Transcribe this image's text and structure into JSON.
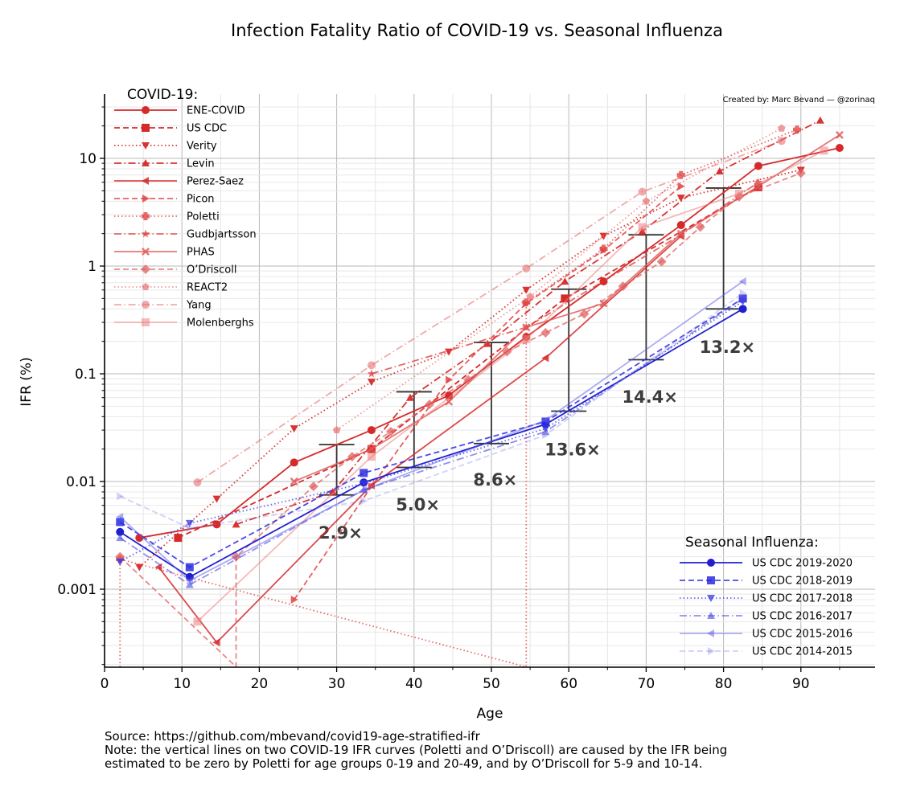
{
  "chart_data": {
    "type": "line",
    "title": "Infection Fatality Ratio of COVID-19 vs. Seasonal Influenza",
    "xlabel": "Age",
    "ylabel": "IFR (%)",
    "xlim": [
      0,
      100
    ],
    "ylim": [
      0.00019,
      40
    ],
    "yscale": "log",
    "grid": true,
    "x_ticks": [
      0,
      10,
      20,
      30,
      40,
      50,
      60,
      70,
      80,
      90
    ],
    "y_ticks": [
      {
        "value": 0.001,
        "label": "0.001"
      },
      {
        "value": 0.01,
        "label": "0.01"
      },
      {
        "value": 0.1,
        "label": "0.1"
      },
      {
        "value": 1,
        "label": "1"
      },
      {
        "value": 10,
        "label": "10"
      }
    ],
    "credit": "Created by: Marc Bevand — @zorinaq",
    "legend_covid": {
      "title": "COVID-19:",
      "placement": "top-left"
    },
    "legend_flu": {
      "title": "Seasonal Influenza:",
      "placement": "bottom-right"
    },
    "series": [
      {
        "name": "ENE-COVID",
        "group": "covid",
        "color": "#d62a2a",
        "opacity": 1.0,
        "dash": "solid",
        "marker": "circle",
        "x": [
          4.5,
          14.5,
          24.5,
          34.5,
          44.5,
          54.5,
          64.5,
          74.5,
          84.5,
          95
        ],
        "y": [
          0.003,
          0.004,
          0.015,
          0.03,
          0.063,
          0.22,
          0.72,
          2.4,
          8.5,
          12.5
        ]
      },
      {
        "name": "US CDC",
        "group": "covid",
        "color": "#d62a2a",
        "opacity": 1.0,
        "dash": "dashed",
        "marker": "square",
        "x": [
          9.5,
          34.5,
          59.5,
          84.5
        ],
        "y": [
          0.003,
          0.02,
          0.5,
          5.4
        ]
      },
      {
        "name": "Verity",
        "group": "covid",
        "color": "#d62a2a",
        "opacity": 0.95,
        "dash": "dotted",
        "marker": "triangle-down",
        "x": [
          4.5,
          14.5,
          24.5,
          34.5,
          44.5,
          54.5,
          64.5,
          74.5,
          90
        ],
        "y": [
          0.0016,
          0.0069,
          0.031,
          0.084,
          0.16,
          0.6,
          1.9,
          4.3,
          7.8
        ]
      },
      {
        "name": "Levin",
        "group": "covid",
        "color": "#d62a2a",
        "opacity": 0.95,
        "dash": "dashdot",
        "marker": "triangle-up",
        "x": [
          17,
          29.5,
          39.5,
          49.5,
          59.5,
          69.5,
          79.5,
          92.5
        ],
        "y": [
          0.004,
          0.008,
          0.06,
          0.19,
          0.72,
          2.1,
          7.6,
          22.5
        ]
      },
      {
        "name": "Perez-Saez",
        "group": "covid",
        "color": "#d62a2a",
        "opacity": 0.85,
        "dash": "solid",
        "marker": "triangle-left",
        "x": [
          7,
          14.5,
          34.5,
          57,
          74.5
        ],
        "y": [
          0.0016,
          0.00032,
          0.0092,
          0.14,
          1.9
        ]
      },
      {
        "name": "Picon",
        "group": "covid",
        "color": "#e04545",
        "opacity": 0.85,
        "dash": "dashed",
        "marker": "triangle-right",
        "x": [
          24.5,
          34.5,
          44.5,
          54.5,
          64.5,
          74.5
        ],
        "y": [
          0.0008,
          0.009,
          0.088,
          0.45,
          1.4,
          5.5
        ]
      },
      {
        "name": "Poletti",
        "group": "covid",
        "color": "#e04545",
        "opacity": 0.8,
        "dash": "dotted",
        "marker": "plus-filled",
        "x": [
          2,
          2,
          54.5,
          54.5,
          64.5,
          74.5,
          89.5
        ],
        "y": [
          0.00019,
          0.0019,
          0.00019,
          0.46,
          1.45,
          7.0,
          18.5
        ]
      },
      {
        "name": "Gudbjartsson",
        "group": "covid",
        "color": "#e04545",
        "opacity": 0.8,
        "dash": "dashdot",
        "marker": "star",
        "x": [
          34.5,
          54.5,
          74.5,
          84.5
        ],
        "y": [
          0.1,
          0.27,
          1.95,
          6.0
        ]
      },
      {
        "name": "PHAS",
        "group": "covid",
        "color": "#e05555",
        "opacity": 0.8,
        "dash": "solid",
        "marker": "x-filled",
        "x": [
          24.5,
          34.5,
          44.5,
          54.5,
          64.5,
          74.5,
          84.5,
          95
        ],
        "y": [
          0.01,
          0.02,
          0.055,
          0.27,
          0.45,
          2.0,
          5.5,
          16.5
        ]
      },
      {
        "name": "O’Driscoll",
        "group": "covid",
        "color": "#e06060",
        "opacity": 0.75,
        "dash": "dashed",
        "marker": "diamond",
        "x": [
          2,
          17,
          17,
          27,
          32,
          37,
          42,
          47,
          52,
          57,
          62,
          67,
          72,
          77,
          82,
          90
        ],
        "y": [
          0.002,
          0.00019,
          0.002,
          0.009,
          0.017,
          0.029,
          0.052,
          0.088,
          0.16,
          0.24,
          0.36,
          0.65,
          1.1,
          2.3,
          4.4,
          7.3
        ]
      },
      {
        "name": "REACT2",
        "group": "covid",
        "color": "#e87070",
        "opacity": 0.7,
        "dash": "dotted",
        "marker": "pentagon",
        "x": [
          30,
          55,
          70,
          87.5
        ],
        "y": [
          0.03,
          0.52,
          4.0,
          19.0
        ]
      },
      {
        "name": "Yang",
        "group": "covid",
        "color": "#e87070",
        "opacity": 0.6,
        "dash": "dashdot",
        "marker": "circle",
        "x": [
          12,
          34.5,
          54.5,
          69.5,
          87.5
        ],
        "y": [
          0.0098,
          0.12,
          0.95,
          4.9,
          14.5
        ]
      },
      {
        "name": "Molenberghs",
        "group": "covid",
        "color": "#ec8080",
        "opacity": 0.55,
        "dash": "solid",
        "marker": "square",
        "x": [
          12,
          34.5,
          54.5,
          69.5,
          82,
          93
        ],
        "y": [
          0.0005,
          0.017,
          0.21,
          2.3,
          4.7,
          11.8
        ]
      },
      {
        "name": "US CDC 2019-2020",
        "group": "flu",
        "color": "#1f1fd0",
        "opacity": 1.0,
        "dash": "solid",
        "marker": "circle",
        "x": [
          2,
          11,
          33.5,
          57,
          82.5
        ],
        "y": [
          0.0034,
          0.0013,
          0.0098,
          0.034,
          0.4
        ]
      },
      {
        "name": "US CDC 2018-2019",
        "group": "flu",
        "color": "#2a2ae0",
        "opacity": 0.85,
        "dash": "dashed",
        "marker": "square",
        "x": [
          2,
          11,
          33.5,
          57,
          82.5
        ],
        "y": [
          0.0042,
          0.0016,
          0.012,
          0.036,
          0.5
        ]
      },
      {
        "name": "US CDC 2017-2018",
        "group": "flu",
        "color": "#3535e0",
        "opacity": 0.75,
        "dash": "dotted",
        "marker": "triangle-down",
        "x": [
          2,
          11,
          33.5,
          57,
          82.5
        ],
        "y": [
          0.0018,
          0.0041,
          0.0096,
          0.031,
          0.47
        ]
      },
      {
        "name": "US CDC 2016-2017",
        "group": "flu",
        "color": "#4848e0",
        "opacity": 0.6,
        "dash": "dashdot",
        "marker": "triangle-up",
        "x": [
          2,
          11,
          33.5,
          57,
          82.5
        ],
        "y": [
          0.003,
          0.0011,
          0.0084,
          0.029,
          0.5
        ]
      },
      {
        "name": "US CDC 2015-2016",
        "group": "flu",
        "color": "#5a5ae8",
        "opacity": 0.5,
        "dash": "solid",
        "marker": "triangle-left",
        "x": [
          2,
          11,
          33.5,
          57,
          82.5
        ],
        "y": [
          0.0047,
          0.0012,
          0.0083,
          0.037,
          0.72
        ]
      },
      {
        "name": "US CDC 2014-2015",
        "group": "flu",
        "color": "#7a7ae8",
        "opacity": 0.35,
        "dash": "dashed",
        "marker": "triangle-right",
        "x": [
          2,
          11,
          33.5,
          57,
          82.5
        ],
        "y": [
          0.0073,
          0.0037,
          0.0066,
          0.027,
          0.56
        ]
      }
    ],
    "ratio_bars": [
      {
        "x": 30,
        "low": 0.0075,
        "high": 0.022,
        "label": "2.9×",
        "label_x": 30.5,
        "label_y": 0.0034
      },
      {
        "x": 40,
        "low": 0.0135,
        "high": 0.068,
        "label": "5.0×",
        "label_x": 40.5,
        "label_y": 0.0062
      },
      {
        "x": 50,
        "low": 0.0225,
        "high": 0.195,
        "label": "8.6×",
        "label_x": 50.5,
        "label_y": 0.0105
      },
      {
        "x": 60,
        "low": 0.045,
        "high": 0.61,
        "label": "13.6×",
        "label_x": 60.5,
        "label_y": 0.02
      },
      {
        "x": 70,
        "low": 0.135,
        "high": 1.95,
        "label": "14.4×",
        "label_x": 70.5,
        "label_y": 0.062
      },
      {
        "x": 80,
        "low": 0.4,
        "high": 5.3,
        "label": "13.2×",
        "label_x": 80.5,
        "label_y": 0.18
      }
    ]
  },
  "footer": {
    "source": "Source: https://github.com/mbevand/covid19-age-stratified-ifr",
    "note_line1": "Note: the vertical lines on two COVID-19 IFR curves (Poletti and O’Driscoll) are caused by the IFR being",
    "note_line2": "estimated to be zero by Poletti for age groups 0-19 and 20-49, and by O’Driscoll for 5-9 and 10-14."
  }
}
